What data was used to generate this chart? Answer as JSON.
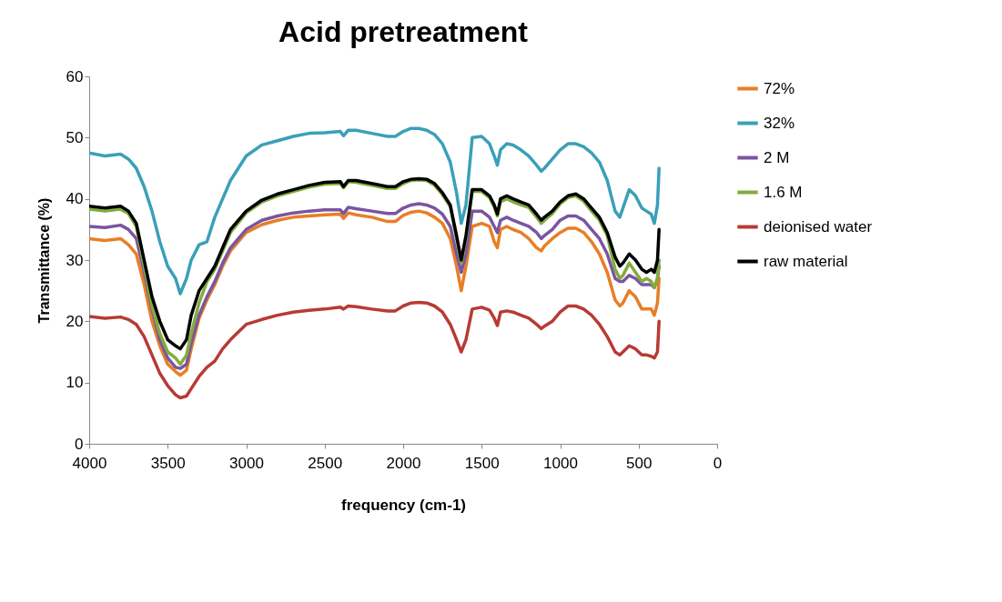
{
  "chart_data": {
    "type": "line",
    "title": "Acid pretreatment",
    "xlabel": "frequency (cm-1)",
    "ylabel": "Transmittance (%)",
    "x": [
      4000,
      3900,
      3800,
      3750,
      3700,
      3650,
      3600,
      3550,
      3500,
      3450,
      3420,
      3380,
      3350,
      3300,
      3250,
      3200,
      3150,
      3100,
      3000,
      2900,
      2800,
      2700,
      2600,
      2500,
      2400,
      2380,
      2350,
      2300,
      2200,
      2100,
      2050,
      2000,
      1950,
      1900,
      1850,
      1800,
      1750,
      1700,
      1660,
      1630,
      1600,
      1560,
      1500,
      1450,
      1420,
      1400,
      1380,
      1340,
      1300,
      1250,
      1200,
      1150,
      1120,
      1100,
      1050,
      1000,
      950,
      900,
      850,
      800,
      750,
      700,
      650,
      620,
      600,
      560,
      520,
      480,
      450,
      420,
      400,
      380,
      370
    ],
    "xlim": [
      4000,
      0
    ],
    "xticks": [
      4000,
      3500,
      3000,
      2500,
      2000,
      1500,
      1000,
      500,
      0
    ],
    "ylim": [
      0,
      60
    ],
    "yticks": [
      0,
      10,
      20,
      30,
      40,
      50,
      60
    ],
    "grid": false,
    "legend": "right",
    "marker": "none",
    "line_style": "solid",
    "series": [
      {
        "name": "72%",
        "color": "#e87e26",
        "values": [
          33.5,
          33.2,
          33.5,
          32.5,
          31,
          26,
          20,
          16,
          13,
          11.8,
          11.2,
          12,
          15.5,
          20.5,
          23.5,
          26,
          29,
          31.5,
          34.5,
          35.8,
          36.5,
          37,
          37.2,
          37.4,
          37.5,
          36.8,
          37.7,
          37.4,
          37,
          36.3,
          36.3,
          37.3,
          37.8,
          38,
          37.7,
          37,
          36,
          33.5,
          29,
          25,
          29,
          35.5,
          36,
          35.5,
          33,
          32,
          35,
          35.5,
          35,
          34.5,
          33.5,
          32,
          31.5,
          32.3,
          33.5,
          34.5,
          35.2,
          35.2,
          34.5,
          33,
          31,
          28,
          23.5,
          22.5,
          23,
          25,
          24,
          22,
          22,
          22,
          21,
          23,
          27
        ]
      },
      {
        "name": "32%",
        "color": "#3aa0b8",
        "values": [
          47.5,
          47,
          47.3,
          46.5,
          45,
          42,
          38,
          33,
          29,
          27,
          24.5,
          27,
          30,
          32.5,
          33,
          37,
          40,
          43,
          47,
          48.8,
          49.5,
          50.2,
          50.7,
          50.8,
          51,
          50.3,
          51.2,
          51.2,
          50.7,
          50.2,
          50.2,
          51,
          51.5,
          51.5,
          51.2,
          50.5,
          49,
          46,
          41,
          36,
          39,
          50,
          50.2,
          49,
          47,
          45.5,
          48,
          49,
          48.8,
          48,
          47,
          45.5,
          44.5,
          45,
          46.5,
          48,
          49,
          49,
          48.5,
          47.5,
          46,
          43,
          38,
          37,
          38.5,
          41.5,
          40.5,
          38.5,
          38,
          37.5,
          36,
          39,
          45
        ]
      },
      {
        "name": "2 M",
        "color": "#7a55a0",
        "values": [
          35.5,
          35.3,
          35.7,
          35,
          33.5,
          28,
          22,
          17,
          14,
          12.5,
          12.3,
          13,
          16.5,
          21,
          24,
          26.5,
          29.5,
          32,
          35,
          36.5,
          37.2,
          37.7,
          38,
          38.2,
          38.2,
          37.6,
          38.6,
          38.4,
          38,
          37.6,
          37.6,
          38.5,
          39,
          39.2,
          39,
          38.5,
          37.5,
          35.5,
          31,
          28,
          31,
          38,
          38,
          37,
          35.5,
          34.5,
          36.5,
          37,
          36.5,
          36,
          35.5,
          34.5,
          33.5,
          34,
          35,
          36.5,
          37.2,
          37.2,
          36.5,
          35,
          33.5,
          31,
          27,
          26.5,
          26.5,
          27.5,
          27,
          26,
          26,
          26,
          25.5,
          27,
          29
        ]
      },
      {
        "name": "1.6 M",
        "color": "#82ac3c",
        "values": [
          38.3,
          38,
          38.3,
          37.6,
          35.5,
          29,
          22.5,
          18,
          15,
          14,
          13,
          14.5,
          18,
          23,
          26.5,
          28.5,
          31.5,
          34.5,
          37.7,
          39.5,
          40.5,
          41.2,
          41.9,
          42.4,
          42.5,
          41.8,
          42.8,
          42.7,
          42.2,
          41.7,
          41.7,
          42.5,
          43,
          43.1,
          43,
          42.2,
          40.7,
          38.7,
          33.5,
          29.5,
          33.5,
          41.2,
          41.2,
          40.2,
          38.7,
          37.2,
          39.5,
          40,
          39.5,
          39,
          38.6,
          37,
          36,
          36.5,
          37.6,
          39.2,
          40.2,
          40.5,
          39.6,
          38,
          36.5,
          34,
          28.5,
          27,
          27.5,
          29.5,
          28,
          26.5,
          27,
          26.5,
          25.5,
          27,
          30
        ]
      },
      {
        "name": "deionised water",
        "color": "#b83a34",
        "values": [
          20.8,
          20.5,
          20.7,
          20.3,
          19.5,
          17.5,
          14.5,
          11.5,
          9.5,
          8,
          7.5,
          7.8,
          9,
          11,
          12.5,
          13.5,
          15.5,
          17,
          19.5,
          20.3,
          21,
          21.5,
          21.8,
          22,
          22.3,
          22,
          22.5,
          22.4,
          22,
          21.7,
          21.7,
          22.5,
          23,
          23.1,
          23,
          22.5,
          21.5,
          19.5,
          17,
          15,
          17,
          22,
          22.3,
          21.8,
          20.5,
          19.3,
          21.5,
          21.7,
          21.5,
          21,
          20.5,
          19.5,
          18.8,
          19.2,
          20,
          21.5,
          22.5,
          22.5,
          22,
          21,
          19.5,
          17.5,
          15,
          14.5,
          15,
          16,
          15.5,
          14.5,
          14.5,
          14.3,
          14,
          15,
          20
        ]
      },
      {
        "name": "raw material",
        "color": "#000000",
        "values": [
          38.8,
          38.5,
          38.8,
          38,
          36,
          30,
          24,
          20,
          17,
          16,
          15.5,
          17,
          21,
          25,
          27,
          29,
          32,
          35,
          38,
          39.8,
          40.8,
          41.5,
          42.2,
          42.7,
          42.8,
          42,
          43,
          43,
          42.5,
          42,
          42,
          42.8,
          43.2,
          43.3,
          43.2,
          42.5,
          41,
          39,
          34,
          30,
          34,
          41.5,
          41.5,
          40.5,
          39,
          37.5,
          40,
          40.5,
          40,
          39.5,
          39,
          37.5,
          36.5,
          37,
          38,
          39.5,
          40.5,
          40.8,
          40,
          38.5,
          37,
          34.5,
          30.5,
          29,
          29.5,
          31,
          30,
          28.5,
          28,
          28.5,
          28,
          30,
          35
        ]
      }
    ]
  }
}
